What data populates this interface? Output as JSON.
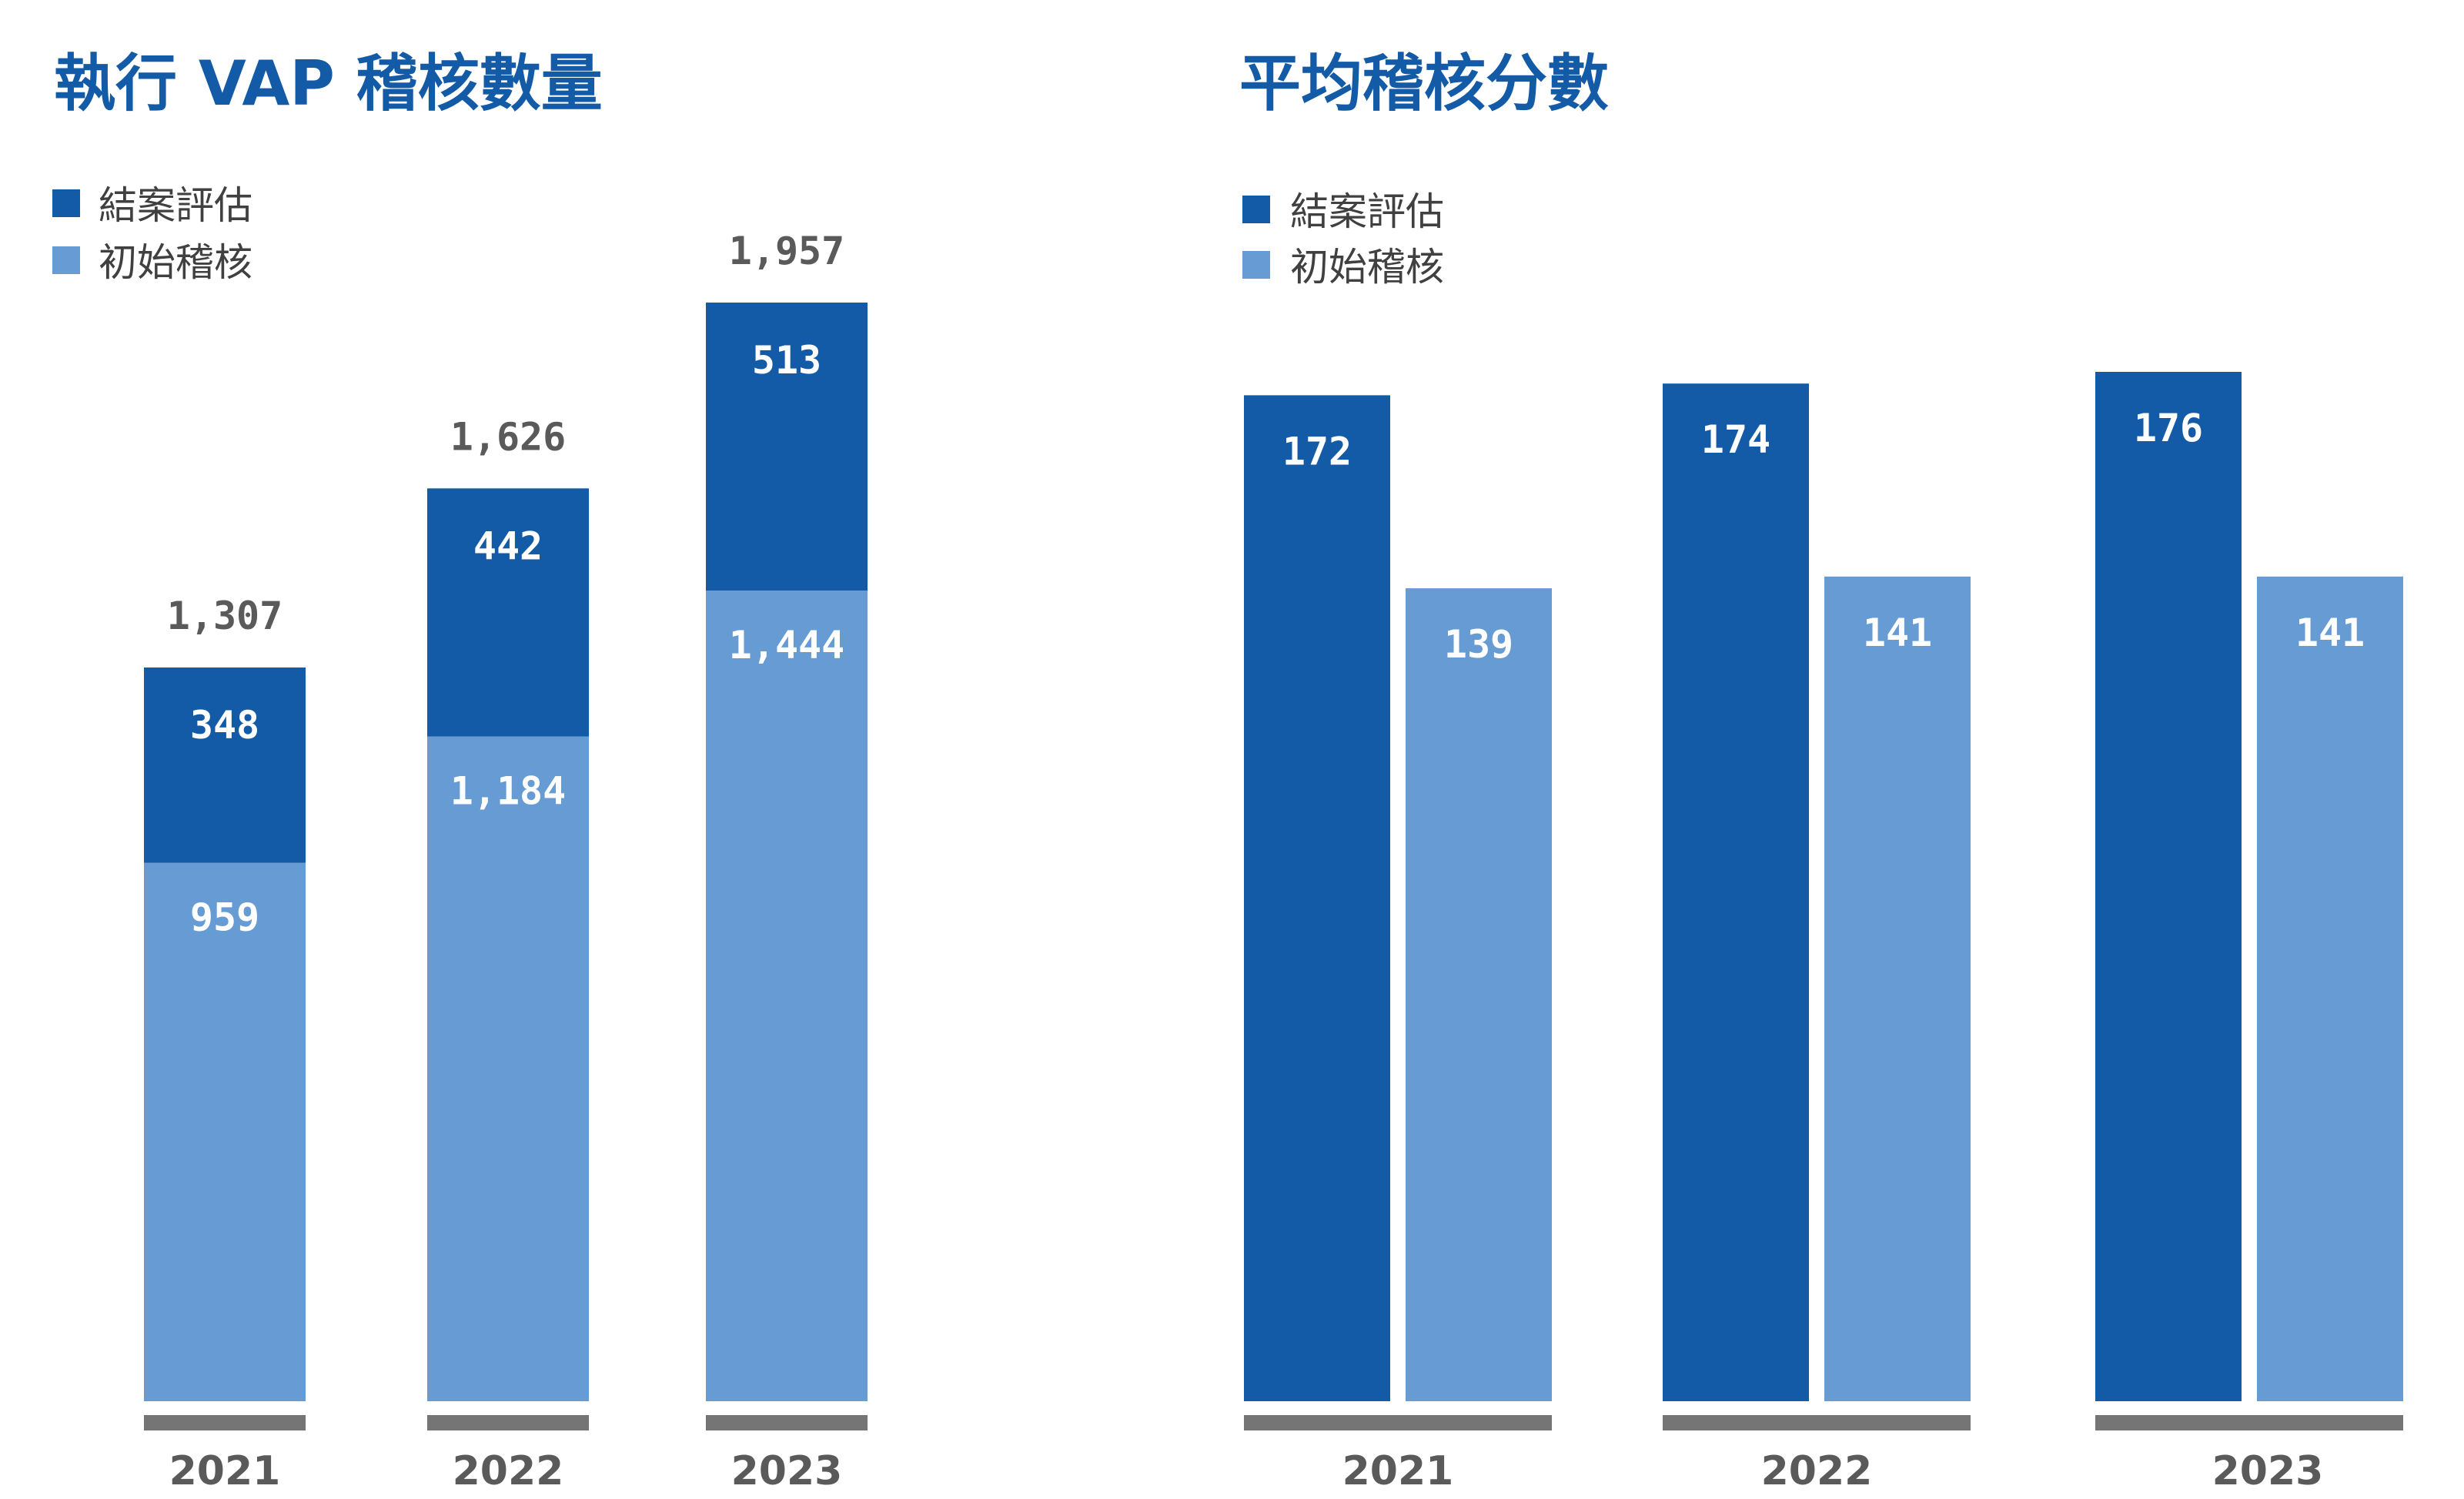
{
  "colors": {
    "dark_blue": "#135ba7",
    "light_blue": "#679bd4",
    "title": "#135ba7",
    "axis_base": "#757575"
  },
  "chart_data": [
    {
      "type": "bar",
      "stacked": true,
      "title": "執行 VAP 稽核數量",
      "categories": [
        "2021",
        "2022",
        "2023"
      ],
      "legend": [
        "結案評估",
        "初始稽核"
      ],
      "legend_position": "top-left",
      "series": [
        {
          "name": "初始稽核",
          "values": [
            959,
            1184,
            1444
          ],
          "labels": [
            "959",
            "1,184",
            "1,444"
          ]
        },
        {
          "name": "結案評估",
          "values": [
            348,
            442,
            513
          ],
          "labels": [
            "348",
            "442",
            "513"
          ]
        }
      ],
      "totals": [
        1307,
        1626,
        1957
      ],
      "total_labels": [
        "1,307",
        "1,626",
        "1,957"
      ],
      "ylim": [
        0,
        1957
      ],
      "grid": false
    },
    {
      "type": "bar",
      "stacked": false,
      "title": "平均稽核分數",
      "categories": [
        "2021",
        "2022",
        "2023"
      ],
      "legend": [
        "結案評估",
        "初始稽核"
      ],
      "legend_position": "top-left",
      "series": [
        {
          "name": "結案評估",
          "values": [
            172,
            174,
            176
          ],
          "labels": [
            "172",
            "174",
            "176"
          ]
        },
        {
          "name": "初始稽核",
          "values": [
            139,
            141,
            141
          ],
          "labels": [
            "139",
            "141",
            "141"
          ]
        }
      ],
      "ylim": [
        0,
        176
      ],
      "grid": false
    }
  ]
}
